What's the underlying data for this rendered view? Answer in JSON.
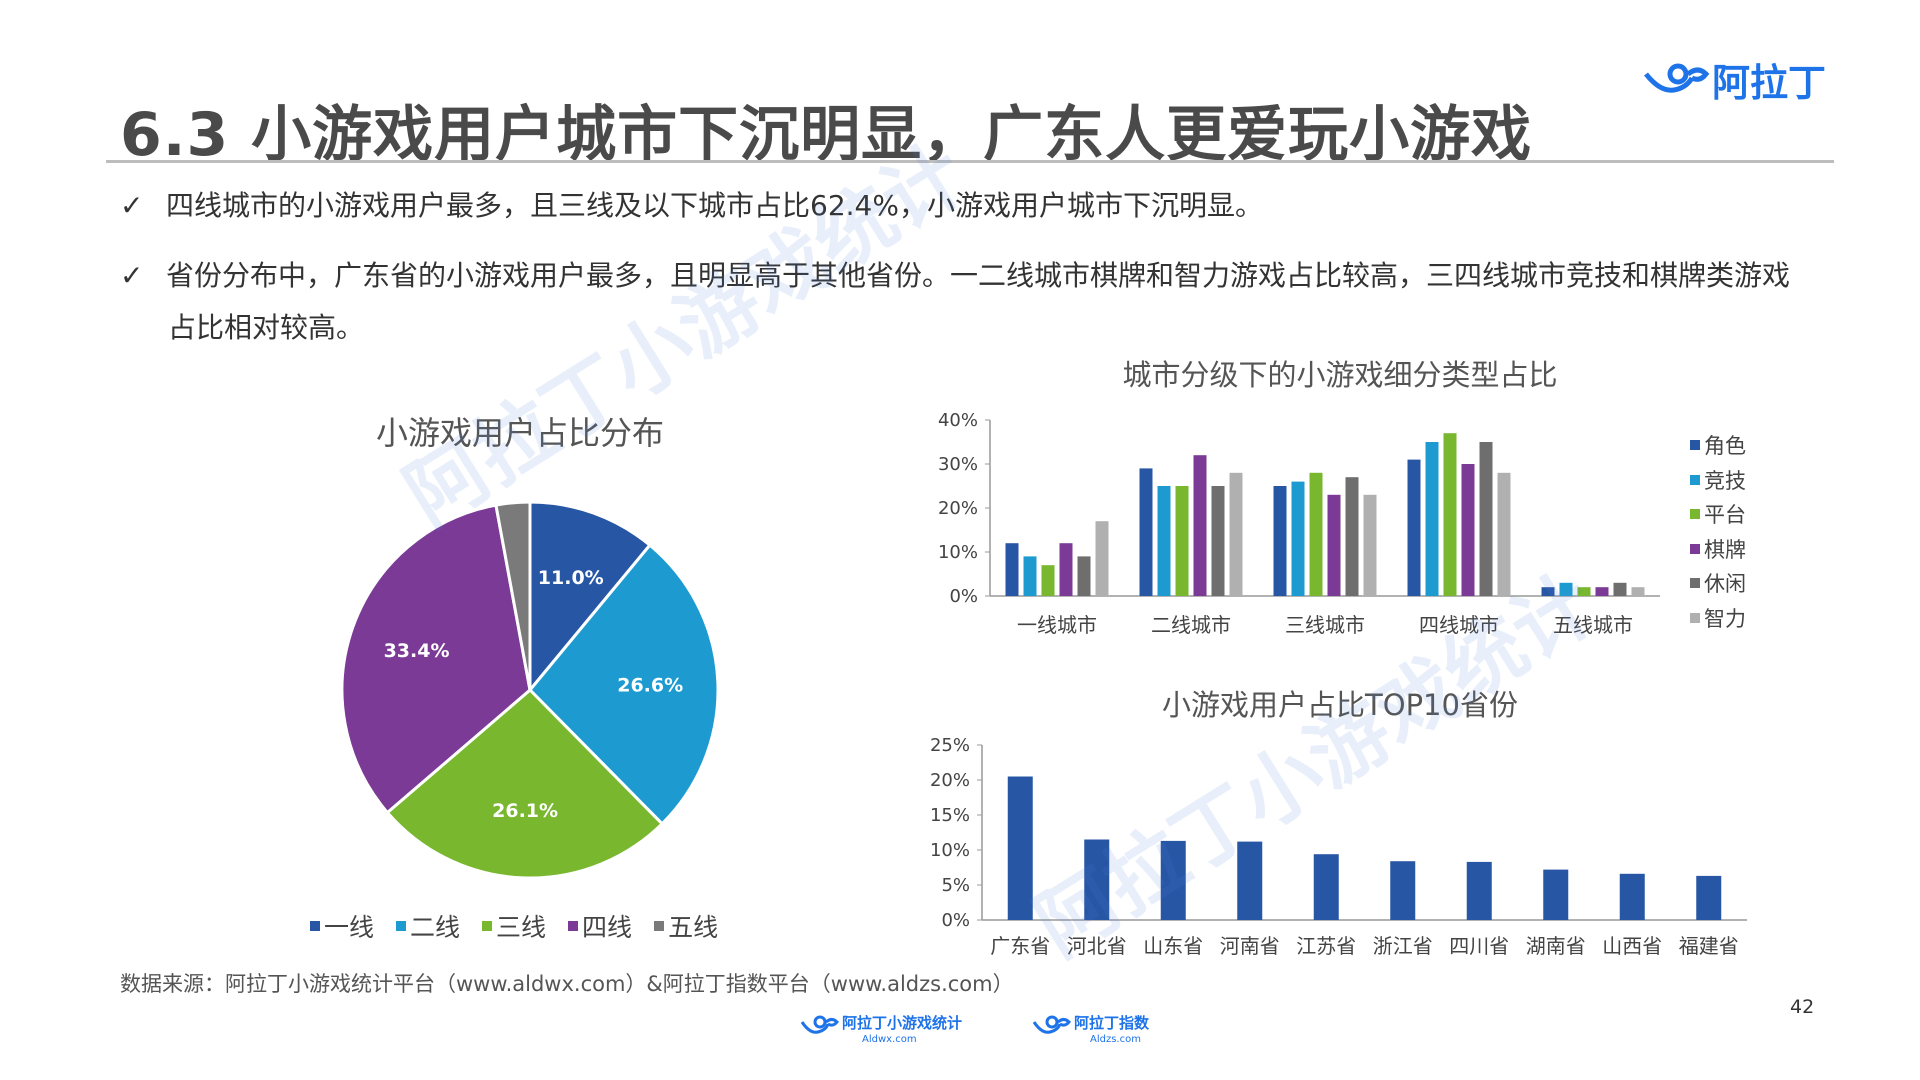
{
  "header": {
    "title": "6.3 小游戏用户城市下沉明显，广东人更爱玩小游戏",
    "brand": "阿拉丁"
  },
  "bullets": [
    {
      "mark": "✓",
      "text": "四线城市的小游戏用户最多，且三线及以下城市占比62.4%，小游戏用户城市下沉明显。"
    },
    {
      "mark": "✓",
      "text": "省份分布中，广东省的小游戏用户最多，且明显高于其他省份。一二线城市棋牌和智力游戏占比较高，三四线城市竞技和棋牌类游戏",
      "text_cont": "占比相对较高。"
    }
  ],
  "watermark": {
    "text": "阿拉丁小游戏统计"
  },
  "colors": {
    "一线": "#2756a4",
    "二线": "#1d9bd1",
    "三线": "#78b72e",
    "四线": "#7b3a96",
    "五线": "#7a7a7a",
    "角色": "#2756a4",
    "竞技": "#1d9bd1",
    "平台": "#78b72e",
    "棋牌": "#7b3a96",
    "休闲": "#6e6e6e",
    "智力": "#b0b0b0",
    "province_bar": "#2756a4"
  },
  "chart_data": [
    {
      "type": "pie",
      "title": "小游戏用户占比分布",
      "categories": [
        "一线",
        "二线",
        "三线",
        "四线",
        "五线"
      ],
      "values": [
        11.0,
        26.6,
        26.1,
        33.4,
        2.9
      ],
      "labels": [
        "11.0%",
        "26.6%",
        "26.1%",
        "33.4%",
        ""
      ],
      "legend": "bottom"
    },
    {
      "type": "bar",
      "title": "城市分级下的小游戏细分类型占比",
      "categories": [
        "一线城市",
        "二线城市",
        "三线城市",
        "四线城市",
        "五线城市"
      ],
      "series": [
        {
          "name": "角色",
          "values": [
            12,
            29,
            25,
            31,
            2
          ]
        },
        {
          "name": "竞技",
          "values": [
            9,
            25,
            26,
            35,
            3
          ]
        },
        {
          "name": "平台",
          "values": [
            7,
            25,
            28,
            37,
            2
          ]
        },
        {
          "name": "棋牌",
          "values": [
            12,
            32,
            23,
            30,
            2
          ]
        },
        {
          "name": "休闲",
          "values": [
            9,
            25,
            27,
            35,
            3
          ]
        },
        {
          "name": "智力",
          "values": [
            17,
            28,
            23,
            28,
            2
          ]
        }
      ],
      "yticks": [
        "0%",
        "10%",
        "20%",
        "30%",
        "40%"
      ],
      "ylim": [
        0,
        40
      ],
      "legend": "right"
    },
    {
      "type": "bar",
      "title": "小游戏用户占比TOP10省份",
      "categories": [
        "广东省",
        "河北省",
        "山东省",
        "河南省",
        "江苏省",
        "浙江省",
        "四川省",
        "湖南省",
        "山西省",
        "福建省"
      ],
      "values": [
        20.5,
        11.5,
        11.3,
        11.2,
        9.4,
        8.4,
        8.3,
        7.2,
        6.6,
        6.3
      ],
      "yticks": [
        "0%",
        "5%",
        "10%",
        "15%",
        "20%",
        "25%"
      ],
      "ylim": [
        0,
        25
      ]
    }
  ],
  "footer": {
    "source": "数据来源：阿拉丁小游戏统计平台（www.aldwx.com）&阿拉丁指数平台（www.aldzs.com）",
    "page_number": "42",
    "logo1_name": "阿拉丁小游戏统计",
    "logo1_url": "Aldwx.com",
    "logo2_name": "阿拉丁指数",
    "logo2_url": "Aldzs.com"
  }
}
